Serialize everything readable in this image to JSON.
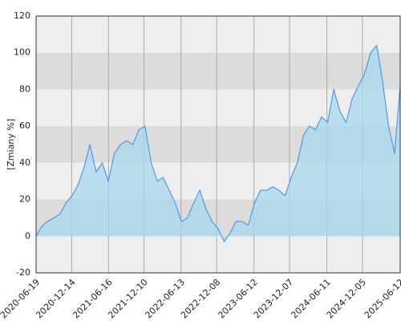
{
  "chart_data": {
    "type": "area",
    "y_label": "[Zmiany %]",
    "x": [
      "2020-06-19",
      "2020-07-15",
      "2020-08-15",
      "2020-09-15",
      "2020-10-15",
      "2020-11-15",
      "2020-12-15",
      "2021-01-15",
      "2021-02-15",
      "2021-03-15",
      "2021-04-15",
      "2021-05-15",
      "2021-06-15",
      "2021-07-15",
      "2021-08-15",
      "2021-09-15",
      "2021-10-15",
      "2021-11-15",
      "2021-12-15",
      "2022-01-15",
      "2022-02-15",
      "2022-03-15",
      "2022-04-15",
      "2022-05-15",
      "2022-06-15",
      "2022-07-15",
      "2022-08-15",
      "2022-09-15",
      "2022-10-15",
      "2022-11-15",
      "2022-12-15",
      "2023-01-15",
      "2023-02-15",
      "2023-03-15",
      "2023-04-15",
      "2023-05-15",
      "2023-06-15",
      "2023-07-15",
      "2023-08-15",
      "2023-09-15",
      "2023-10-15",
      "2023-11-15",
      "2023-12-15",
      "2024-01-15",
      "2024-02-15",
      "2024-03-15",
      "2024-04-15",
      "2024-05-15",
      "2024-06-15",
      "2024-07-15",
      "2024-08-15",
      "2024-09-15",
      "2024-10-15",
      "2024-11-15",
      "2024-12-15",
      "2025-01-15",
      "2025-02-15",
      "2025-03-15",
      "2025-04-15",
      "2025-05-15",
      "2025-06-12"
    ],
    "values": [
      0,
      5,
      8,
      10,
      12,
      18,
      22,
      28,
      38,
      50,
      35,
      40,
      30,
      45,
      50,
      52,
      50,
      58,
      60,
      40,
      30,
      32,
      25,
      18,
      8,
      10,
      18,
      25,
      15,
      8,
      4,
      -3,
      2,
      8,
      8,
      6,
      18,
      25,
      25,
      27,
      25,
      22,
      32,
      40,
      55,
      60,
      58,
      65,
      62,
      80,
      68,
      62,
      75,
      82,
      88,
      100,
      104,
      85,
      60,
      45,
      82
    ],
    "color": "#4a9be8",
    "fill": "#a8d8ee",
    "xlim": [
      "2020-06-19",
      "2025-06-12"
    ],
    "xticks": [
      "2020-06-19",
      "2020-12-14",
      "2021-06-16",
      "2021-12-10",
      "2022-06-13",
      "2022-12-08",
      "2023-06-12",
      "2023-12-07",
      "2024-06-11",
      "2024-12-05",
      "2025-06-12"
    ],
    "ylim": [
      -20,
      120
    ],
    "yticks": [
      -20,
      0,
      20,
      40,
      60,
      80,
      100,
      120
    ],
    "grid": true
  }
}
